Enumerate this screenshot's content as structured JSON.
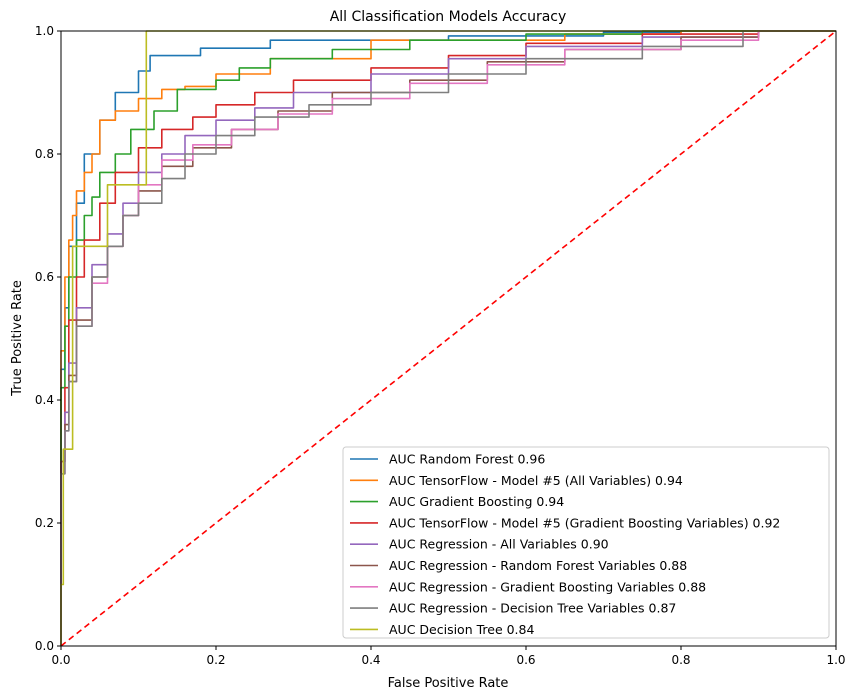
{
  "chart_data": {
    "type": "line",
    "title": "All Classification Models Accuracy",
    "xlabel": "False Positive Rate",
    "ylabel": "True Positive Rate",
    "xlim": [
      0.0,
      1.0
    ],
    "ylim": [
      0.0,
      1.0
    ],
    "xticks": [
      0.0,
      0.2,
      0.4,
      0.6,
      0.8,
      1.0
    ],
    "yticks": [
      0.0,
      0.2,
      0.4,
      0.6,
      0.8,
      1.0
    ],
    "xtick_labels": [
      "0.0",
      "0.2",
      "0.4",
      "0.6",
      "0.8",
      "1.0"
    ],
    "ytick_labels": [
      "0.0",
      "0.2",
      "0.4",
      "0.6",
      "0.8",
      "1.0"
    ],
    "grid": false,
    "legend_position": "lower-right",
    "diagonal": {
      "x": [
        0,
        1
      ],
      "y": [
        0,
        1
      ],
      "color": "#ff0000",
      "style": "dashed"
    },
    "series": [
      {
        "name": "AUC Random Forest 0.96",
        "color": "#1f77b4",
        "x": [
          0,
          0.005,
          0.01,
          0.02,
          0.03,
          0.05,
          0.07,
          0.1,
          0.115,
          0.135,
          0.18,
          0.27,
          0.5,
          0.7,
          0.8,
          1.0
        ],
        "y": [
          0,
          0.45,
          0.55,
          0.65,
          0.72,
          0.8,
          0.855,
          0.9,
          0.935,
          0.96,
          0.96,
          0.972,
          0.985,
          0.992,
          0.998,
          1.0
        ]
      },
      {
        "name": "AUC TensorFlow - Model #5 (All Variables) 0.94",
        "color": "#ff7f0e",
        "x": [
          0,
          0.005,
          0.01,
          0.015,
          0.02,
          0.03,
          0.04,
          0.05,
          0.07,
          0.1,
          0.13,
          0.16,
          0.2,
          0.27,
          0.4,
          0.65,
          0.8,
          1.0
        ],
        "y": [
          0,
          0.48,
          0.6,
          0.66,
          0.7,
          0.74,
          0.77,
          0.8,
          0.855,
          0.87,
          0.89,
          0.905,
          0.91,
          0.93,
          0.955,
          0.985,
          0.995,
          1.0
        ]
      },
      {
        "name": "AUC Gradient Boosting 0.94",
        "color": "#2ca02c",
        "x": [
          0,
          0.005,
          0.01,
          0.02,
          0.03,
          0.04,
          0.05,
          0.07,
          0.09,
          0.12,
          0.15,
          0.2,
          0.23,
          0.27,
          0.35,
          0.45,
          0.6,
          0.75,
          1.0
        ],
        "y": [
          0,
          0.42,
          0.52,
          0.6,
          0.66,
          0.7,
          0.73,
          0.77,
          0.8,
          0.84,
          0.87,
          0.905,
          0.92,
          0.94,
          0.955,
          0.97,
          0.985,
          0.995,
          1.0
        ]
      },
      {
        "name": "AUC TensorFlow - Model #5 (Gradient Boosting Variables) 0.92",
        "color": "#d62728",
        "x": [
          0,
          0.005,
          0.01,
          0.02,
          0.03,
          0.05,
          0.07,
          0.1,
          0.13,
          0.17,
          0.2,
          0.25,
          0.3,
          0.4,
          0.5,
          0.6,
          0.75,
          0.9,
          1.0
        ],
        "y": [
          0,
          0.3,
          0.42,
          0.53,
          0.6,
          0.66,
          0.72,
          0.77,
          0.81,
          0.84,
          0.86,
          0.88,
          0.9,
          0.92,
          0.94,
          0.96,
          0.98,
          0.995,
          1.0
        ]
      },
      {
        "name": "AUC Regression - All Variables 0.90",
        "color": "#9467bd",
        "x": [
          0,
          0.005,
          0.01,
          0.02,
          0.04,
          0.06,
          0.08,
          0.1,
          0.13,
          0.16,
          0.2,
          0.25,
          0.3,
          0.4,
          0.5,
          0.6,
          0.75,
          0.9,
          1.0
        ],
        "y": [
          0,
          0.3,
          0.38,
          0.46,
          0.55,
          0.62,
          0.67,
          0.72,
          0.77,
          0.8,
          0.83,
          0.855,
          0.875,
          0.9,
          0.93,
          0.955,
          0.975,
          0.99,
          1.0
        ]
      },
      {
        "name": "AUC Regression - Random Forest Variables 0.88",
        "color": "#8c564b",
        "x": [
          0,
          0.005,
          0.01,
          0.02,
          0.04,
          0.06,
          0.08,
          0.1,
          0.13,
          0.17,
          0.22,
          0.28,
          0.35,
          0.45,
          0.55,
          0.65,
          0.8,
          0.9,
          1.0
        ],
        "y": [
          0,
          0.3,
          0.36,
          0.44,
          0.53,
          0.6,
          0.65,
          0.7,
          0.74,
          0.78,
          0.81,
          0.84,
          0.87,
          0.9,
          0.92,
          0.95,
          0.97,
          0.99,
          1.0
        ]
      },
      {
        "name": "AUC Regression - Gradient Boosting Variables 0.88",
        "color": "#e377c2",
        "x": [
          0,
          0.005,
          0.01,
          0.02,
          0.04,
          0.06,
          0.08,
          0.1,
          0.13,
          0.17,
          0.22,
          0.28,
          0.35,
          0.45,
          0.55,
          0.65,
          0.8,
          0.9,
          1.0
        ],
        "y": [
          0,
          0.28,
          0.35,
          0.43,
          0.52,
          0.59,
          0.65,
          0.7,
          0.75,
          0.79,
          0.815,
          0.84,
          0.865,
          0.89,
          0.915,
          0.945,
          0.97,
          0.985,
          1.0
        ]
      },
      {
        "name": "AUC Regression - Decision Tree Variables 0.87",
        "color": "#7f7f7f",
        "x": [
          0,
          0.005,
          0.01,
          0.02,
          0.04,
          0.06,
          0.08,
          0.1,
          0.13,
          0.16,
          0.2,
          0.25,
          0.32,
          0.4,
          0.5,
          0.6,
          0.75,
          0.88,
          1.0
        ],
        "y": [
          0,
          0.28,
          0.35,
          0.43,
          0.52,
          0.6,
          0.65,
          0.7,
          0.72,
          0.76,
          0.8,
          0.83,
          0.86,
          0.88,
          0.9,
          0.93,
          0.955,
          0.975,
          1.0
        ]
      },
      {
        "name": "AUC Decision Tree 0.84",
        "color": "#bcbd22",
        "x": [
          0,
          0.003,
          0.015,
          0.06,
          0.11,
          1.0
        ],
        "y": [
          0,
          0.1,
          0.32,
          0.65,
          0.75,
          1.0
        ]
      }
    ]
  }
}
